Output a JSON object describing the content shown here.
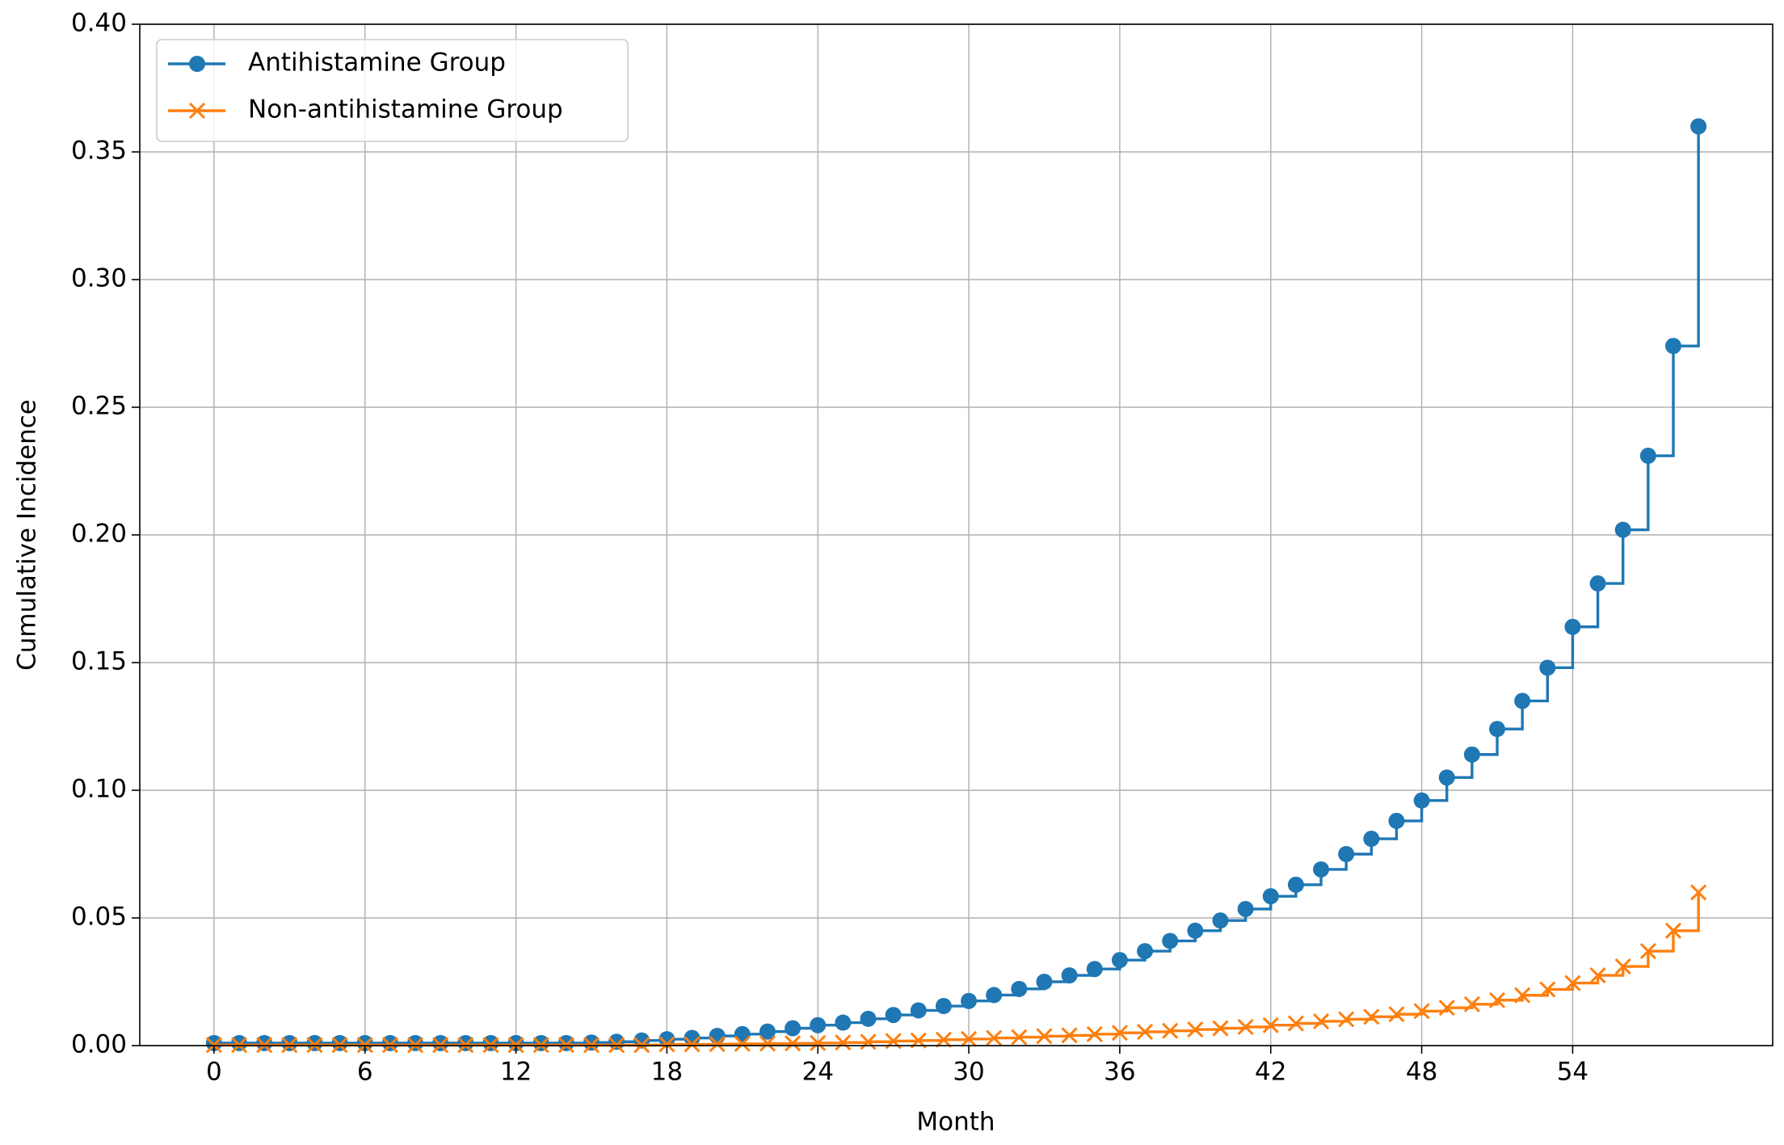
{
  "chart_data": {
    "type": "step",
    "x_label": "Month",
    "y_label": "Cumulative Incidence",
    "x": [
      0,
      1,
      2,
      3,
      4,
      5,
      6,
      7,
      8,
      9,
      10,
      11,
      12,
      13,
      14,
      15,
      16,
      17,
      18,
      19,
      20,
      21,
      22,
      23,
      24,
      25,
      26,
      27,
      28,
      29,
      30,
      31,
      32,
      33,
      34,
      35,
      36,
      37,
      38,
      39,
      40,
      41,
      42,
      43,
      44,
      45,
      46,
      47,
      48,
      49,
      50,
      51,
      52,
      53,
      54,
      55,
      56,
      57,
      58,
      59
    ],
    "series": [
      {
        "name": "Antihistamine Group",
        "color": "#1f77b4",
        "marker": "circle",
        "values": [
          0.001,
          0.001,
          0.001,
          0.001,
          0.001,
          0.001,
          0.001,
          0.001,
          0.001,
          0.001,
          0.001,
          0.001,
          0.001,
          0.001,
          0.001,
          0.0012,
          0.0015,
          0.002,
          0.0025,
          0.003,
          0.0038,
          0.0045,
          0.0055,
          0.0068,
          0.008,
          0.009,
          0.0105,
          0.012,
          0.0138,
          0.0155,
          0.0175,
          0.0198,
          0.0222,
          0.025,
          0.0275,
          0.03,
          0.0335,
          0.037,
          0.041,
          0.045,
          0.049,
          0.0535,
          0.0585,
          0.063,
          0.069,
          0.075,
          0.081,
          0.088,
          0.096,
          0.105,
          0.114,
          0.124,
          0.135,
          0.148,
          0.164,
          0.181,
          0.202,
          0.231,
          0.274,
          0.36
        ]
      },
      {
        "name": "Non-antihistamine Group",
        "color": "#ff7f0e",
        "marker": "x",
        "values": [
          0.0002,
          0.0002,
          0.0002,
          0.0002,
          0.0002,
          0.0002,
          0.0002,
          0.0002,
          0.0002,
          0.0002,
          0.0002,
          0.0002,
          0.0002,
          0.0002,
          0.0002,
          0.0002,
          0.0002,
          0.0002,
          0.0005,
          0.0005,
          0.0006,
          0.0007,
          0.0008,
          0.0009,
          0.001,
          0.0012,
          0.0015,
          0.0018,
          0.002,
          0.0023,
          0.0026,
          0.003,
          0.0033,
          0.0037,
          0.004,
          0.0045,
          0.005,
          0.0054,
          0.0058,
          0.0063,
          0.0068,
          0.0073,
          0.008,
          0.0087,
          0.0095,
          0.0103,
          0.0113,
          0.0123,
          0.0135,
          0.0148,
          0.0162,
          0.0178,
          0.0197,
          0.022,
          0.0245,
          0.0275,
          0.031,
          0.037,
          0.045,
          0.06
        ]
      }
    ],
    "xlim": [
      -2.95,
      61.95
    ],
    "xticks": [
      0,
      6,
      12,
      18,
      24,
      30,
      36,
      42,
      48,
      54
    ],
    "ylim": [
      0,
      0.4
    ],
    "yticks": [
      {
        "value": 0,
        "label": "0.00"
      },
      0.05,
      {
        "value": 0.1,
        "label": "0.10"
      },
      0.15,
      {
        "value": 0.2,
        "label": "0.20"
      },
      0.25,
      {
        "value": 0.3,
        "label": "0.30"
      },
      0.35,
      {
        "value": 0.4,
        "label": "0.40"
      }
    ],
    "grid": true,
    "legend": "upper left"
  }
}
